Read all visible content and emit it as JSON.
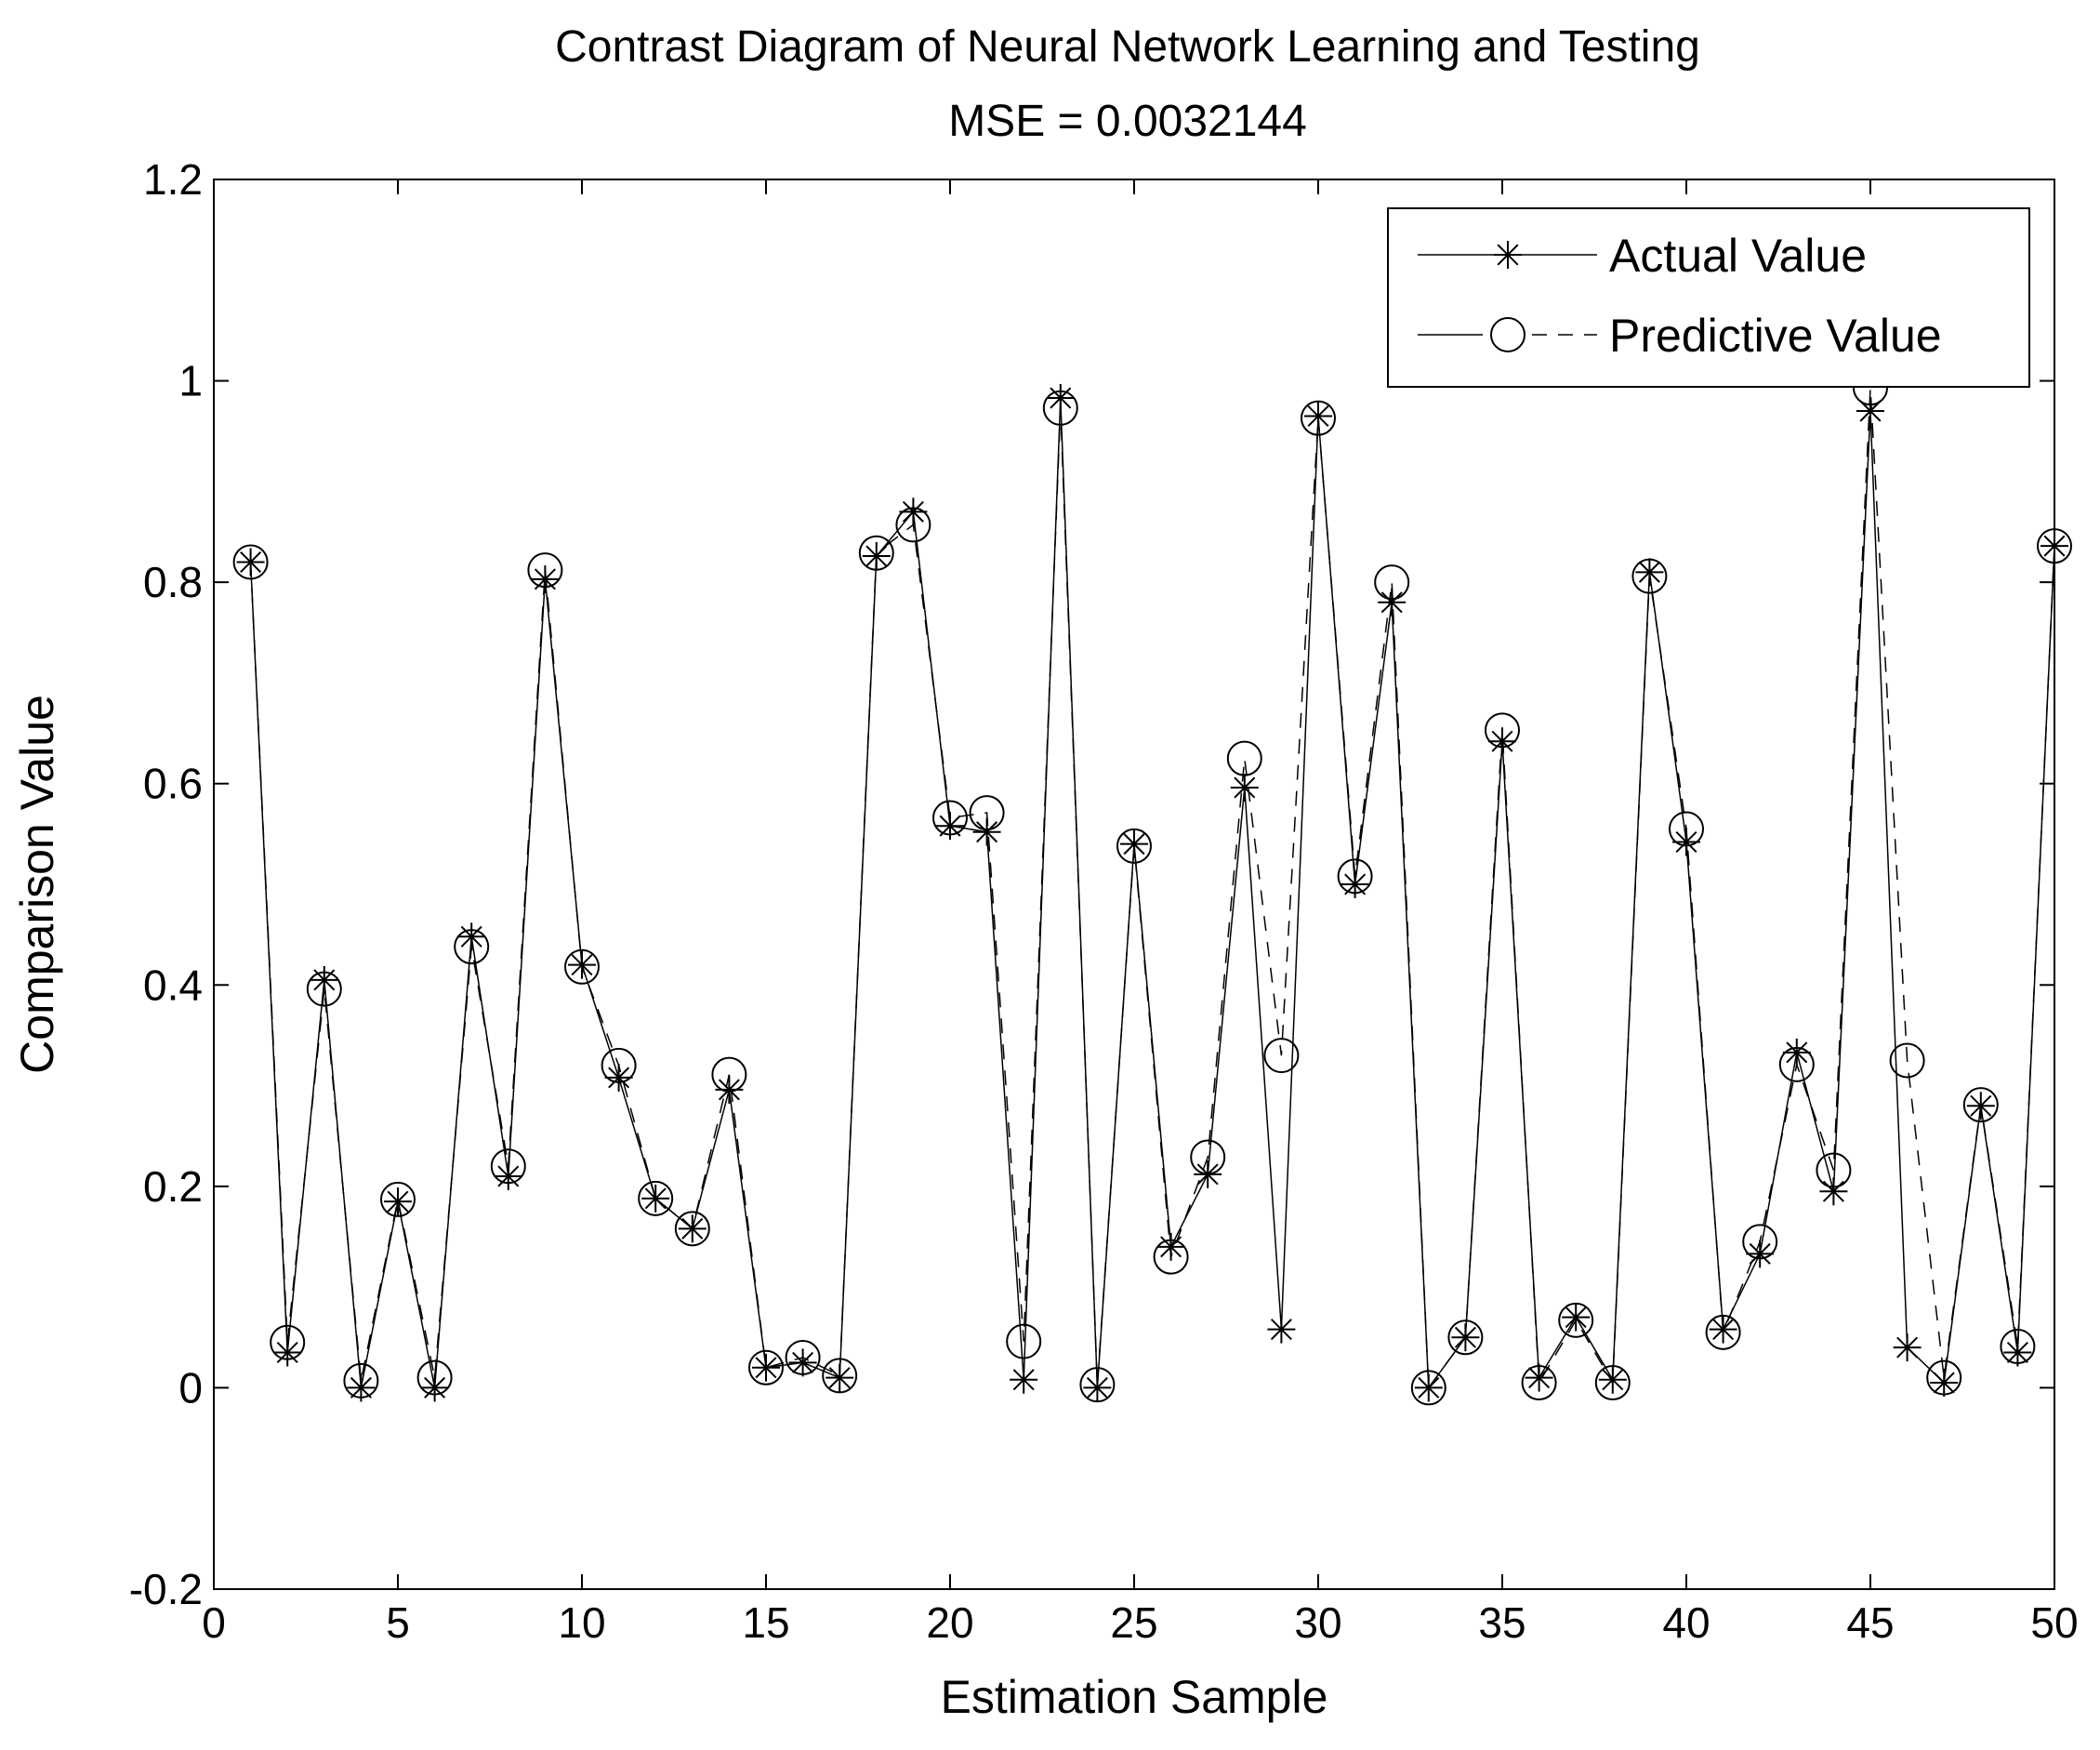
{
  "chart_data": {
    "type": "line",
    "title": "Contrast Diagram of Neural Network Learning and Testing",
    "subtitle": "MSE = 0.0032144",
    "xlabel": "Estimation Sample",
    "ylabel": "Comparison Value",
    "xlim": [
      0,
      50
    ],
    "ylim": [
      -0.2,
      1.2
    ],
    "xticks": [
      0,
      5,
      10,
      15,
      20,
      25,
      30,
      35,
      40,
      45,
      50
    ],
    "yticks": [
      -0.2,
      0,
      0.2,
      0.4,
      0.6,
      0.8,
      1,
      1.2
    ],
    "xtick_labels": [
      "0",
      "5",
      "10",
      "15",
      "20",
      "25",
      "30",
      "35",
      "40",
      "45",
      "50"
    ],
    "ytick_labels": [
      "-0.2",
      "0",
      "0.2",
      "0.4",
      "0.6",
      "0.8",
      "1",
      "1.2"
    ],
    "grid": false,
    "legend_position": "top-right",
    "x": [
      1,
      2,
      3,
      4,
      5,
      6,
      7,
      8,
      9,
      10,
      11,
      12,
      13,
      14,
      15,
      16,
      17,
      18,
      19,
      20,
      21,
      22,
      23,
      24,
      25,
      26,
      27,
      28,
      29,
      30,
      31,
      32,
      33,
      34,
      35,
      36,
      37,
      38,
      39,
      40,
      41,
      42,
      43,
      44,
      45,
      46,
      47,
      48,
      49,
      50
    ],
    "series": [
      {
        "name": "Actual Value",
        "marker": "asterisk",
        "line_style": "solid",
        "color": "#000000",
        "values": [
          0.82,
          0.035,
          0.405,
          0.0,
          0.185,
          0.0,
          0.448,
          0.21,
          0.803,
          0.42,
          0.308,
          0.188,
          0.158,
          0.296,
          0.02,
          0.025,
          0.01,
          0.826,
          0.87,
          0.558,
          0.552,
          0.008,
          0.983,
          0.0,
          0.54,
          0.14,
          0.212,
          0.596,
          0.058,
          0.965,
          0.5,
          0.78,
          0.0,
          0.05,
          0.642,
          0.01,
          0.07,
          0.008,
          0.81,
          0.542,
          0.058,
          0.133,
          0.333,
          0.195,
          0.97,
          0.04,
          0.005,
          0.28,
          0.035,
          0.836
        ]
      },
      {
        "name": "Predictive Value",
        "marker": "circle",
        "line_style": "dashed",
        "color": "#000000",
        "values": [
          0.82,
          0.045,
          0.396,
          0.007,
          0.187,
          0.01,
          0.438,
          0.22,
          0.812,
          0.418,
          0.32,
          0.188,
          0.158,
          0.311,
          0.02,
          0.03,
          0.012,
          0.829,
          0.857,
          0.566,
          0.571,
          0.046,
          0.973,
          0.003,
          0.538,
          0.13,
          0.229,
          0.625,
          0.33,
          0.963,
          0.508,
          0.8,
          0.0,
          0.05,
          0.653,
          0.005,
          0.067,
          0.005,
          0.806,
          0.555,
          0.055,
          0.145,
          0.321,
          0.216,
          0.993,
          0.325,
          0.01,
          0.281,
          0.041,
          0.836
        ]
      }
    ]
  }
}
